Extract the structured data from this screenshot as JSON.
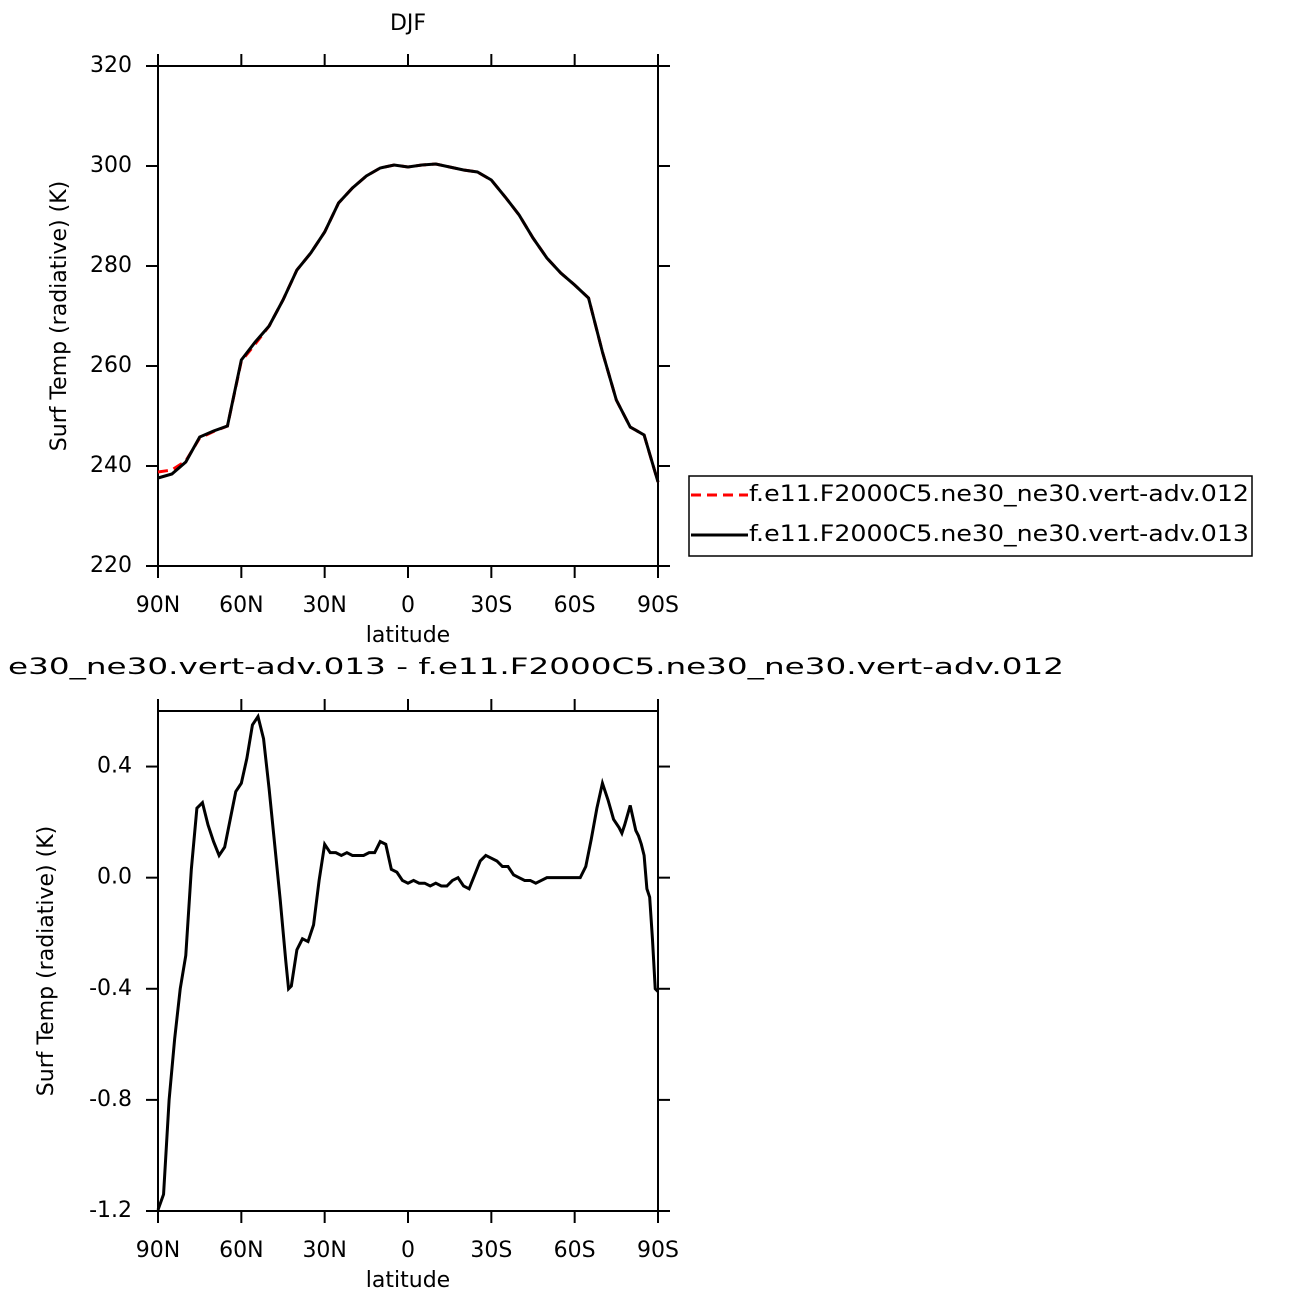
{
  "chart_data": [
    {
      "type": "line",
      "title": "DJF",
      "xlabel": "latitude",
      "ylabel": "Surf Temp (radiative) (K)",
      "x": [
        90,
        85,
        80,
        75,
        70,
        65,
        60,
        55,
        50,
        45,
        40,
        35,
        30,
        25,
        20,
        15,
        10,
        5,
        0,
        -5,
        -10,
        -15,
        -20,
        -25,
        -30,
        -35,
        -40,
        -45,
        -50,
        -55,
        -60,
        -65,
        -70,
        -75,
        -80,
        -85,
        -90
      ],
      "series": [
        {
          "name": "f.e11.F2000C5.ne30_ne30.vert-adv.012",
          "color": "#ff0000",
          "line_style": "dashed",
          "values": [
            238.8,
            239.2,
            241,
            245.6,
            246.9,
            248,
            261,
            264.4,
            268,
            273.2,
            279.2,
            282.6,
            286.8,
            292.6,
            295.6,
            298,
            299.6,
            300.2,
            299.8,
            300.2,
            300.4,
            299.8,
            299.2,
            298.8,
            297.2,
            293.8,
            290.2,
            285.6,
            281.6,
            278.6,
            276.2,
            273.6,
            262.8,
            253.2,
            247.8,
            246.2,
            236.8
          ]
        },
        {
          "name": "f.e11.F2000C5.ne30_ne30.vert-adv.013",
          "color": "#000000",
          "line_style": "solid",
          "values": [
            237.6,
            238.4,
            240.8,
            245.8,
            247,
            248,
            261.2,
            264.8,
            268,
            273.2,
            279.2,
            282.6,
            286.8,
            292.6,
            295.6,
            298,
            299.6,
            300.2,
            299.8,
            300.2,
            300.4,
            299.8,
            299.2,
            298.8,
            297.2,
            293.8,
            290.2,
            285.6,
            281.6,
            278.6,
            276.2,
            273.6,
            262.8,
            253.2,
            247.8,
            246.2,
            236.8
          ]
        }
      ],
      "xlim": [
        90,
        -90
      ],
      "xticks": [
        {
          "value": 90,
          "label": "90N"
        },
        {
          "value": 60,
          "label": "60N"
        },
        {
          "value": 30,
          "label": "30N"
        },
        0,
        {
          "value": -30,
          "label": "30S"
        },
        {
          "value": -60,
          "label": "60S"
        },
        {
          "value": -90,
          "label": "90S"
        }
      ],
      "ylim": [
        220,
        320
      ],
      "yticks": [
        220,
        240,
        260,
        280,
        300,
        320
      ],
      "legend": "right"
    },
    {
      "type": "line",
      "title": "e30_ne30.vert-adv.013 - f.e11.F2000C5.ne30_ne30.vert-adv.012",
      "xlabel": "latitude",
      "ylabel": "Surf Temp (radiative) (K)",
      "x": [
        90,
        88,
        86,
        84,
        82,
        80,
        78,
        76,
        74,
        72,
        70,
        68,
        66,
        64,
        62,
        60,
        58,
        56,
        54,
        52,
        50,
        48,
        46,
        44,
        43,
        42,
        40,
        38,
        36,
        34,
        32,
        30,
        28,
        26,
        24,
        22,
        20,
        18,
        16,
        14,
        12,
        10,
        8,
        6,
        4,
        2,
        0,
        -2,
        -4,
        -6,
        -8,
        -10,
        -12,
        -14,
        -16,
        -18,
        -20,
        -22,
        -24,
        -26,
        -28,
        -30,
        -32,
        -34,
        -36,
        -38,
        -40,
        -42,
        -44,
        -46,
        -48,
        -50,
        -55,
        -60,
        -62,
        -64,
        -66,
        -68,
        -70,
        -72,
        -74,
        -76,
        -77,
        -78,
        -80,
        -82,
        -83,
        -84,
        -85,
        -86,
        -87,
        -88,
        -89,
        -90
      ],
      "values": [
        -1.196,
        -1.14,
        -0.8,
        -0.58,
        -0.4,
        -0.28,
        0.03,
        0.25,
        0.27,
        0.19,
        0.13,
        0.08,
        0.11,
        0.21,
        0.31,
        0.34,
        0.43,
        0.55,
        0.58,
        0.5,
        0.32,
        0.12,
        -0.08,
        -0.3,
        -0.4,
        -0.39,
        -0.26,
        -0.22,
        -0.23,
        -0.17,
        -0.01,
        0.12,
        0.09,
        0.09,
        0.08,
        0.09,
        0.08,
        0.08,
        0.08,
        0.09,
        0.09,
        0.13,
        0.12,
        0.03,
        0.02,
        -0.01,
        -0.02,
        -0.01,
        -0.02,
        -0.02,
        -0.03,
        -0.02,
        -0.03,
        -0.03,
        -0.01,
        0.0,
        -0.03,
        -0.04,
        0.01,
        0.06,
        0.08,
        0.07,
        0.06,
        0.04,
        0.04,
        0.01,
        0.0,
        -0.01,
        -0.01,
        -0.02,
        -0.01,
        0.0,
        0.0,
        0.0,
        0.0,
        0.04,
        0.14,
        0.25,
        0.34,
        0.28,
        0.21,
        0.18,
        0.16,
        0.19,
        0.26,
        0.17,
        0.15,
        0.12,
        0.08,
        -0.04,
        -0.07,
        -0.22,
        -0.4,
        -0.41
      ],
      "color": "#000000",
      "xlim": [
        90,
        -90
      ],
      "xticks": [
        {
          "value": 90,
          "label": "90N"
        },
        {
          "value": 60,
          "label": "60N"
        },
        {
          "value": 30,
          "label": "30N"
        },
        0,
        {
          "value": -30,
          "label": "30S"
        },
        {
          "value": -60,
          "label": "60S"
        },
        {
          "value": -90,
          "label": "90S"
        }
      ],
      "ylim": [
        -1.2,
        0.6
      ],
      "yticks": [
        -1.2,
        -0.8,
        -0.4,
        {
          "value": 0,
          "label": "0.0"
        },
        0.4
      ]
    }
  ]
}
